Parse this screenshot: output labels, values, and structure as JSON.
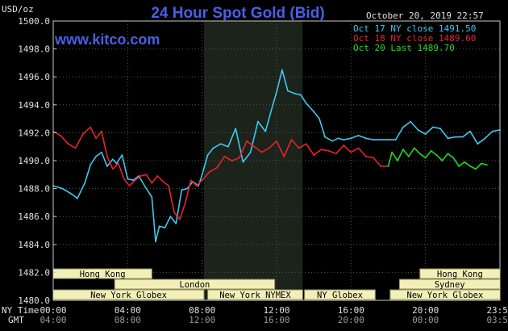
{
  "colors": {
    "background": "#000000",
    "plot_border": "#c8c8c8",
    "grid": "#555555",
    "shade": "#1b231b",
    "title": "#4a5fe8",
    "site": "#4a5fe8",
    "text": "#e0e0e0",
    "session_fill": "#f2efb8",
    "session_text": "#000000",
    "session_border": "#8a8a5a"
  },
  "chart_data": {
    "type": "line",
    "title": "24 Hour Spot Gold (Bid)",
    "site": "www.kitco.com",
    "unit_label": "USD/oz",
    "timestamp": "October 20, 2019 22:57",
    "ylim": [
      1480.0,
      1500.0
    ],
    "y_ticks": [
      1480.0,
      1482.0,
      1484.0,
      1486.0,
      1488.0,
      1490.0,
      1492.0,
      1494.0,
      1496.0,
      1498.0,
      1500.0
    ],
    "x_range_hours": [
      0,
      24
    ],
    "x_ticks": [
      {
        "hour": 0,
        "ny": "00:00",
        "gmt": "04:00"
      },
      {
        "hour": 4,
        "ny": "04:00",
        "gmt": "08:00"
      },
      {
        "hour": 8,
        "ny": "08:00",
        "gmt": "12:00"
      },
      {
        "hour": 12,
        "ny": "12:00",
        "gmt": "16:00"
      },
      {
        "hour": 16,
        "ny": "16:00",
        "gmt": "20:00"
      },
      {
        "hour": 20,
        "ny": "20:00",
        "gmt": "00:00"
      },
      {
        "hour": 24,
        "ny": "23:59",
        "gmt": "03:59"
      }
    ],
    "x_row_labels": {
      "ny": "NY Time",
      "gmt": "GMT"
    },
    "shaded_hours": [
      8.1,
      13.4
    ],
    "legend": [
      {
        "label": "Oct 17 NY close 1491.50",
        "color": "#3fc8f0"
      },
      {
        "label": "Oct 18 NY close 1489.60",
        "color": "#e8242a"
      },
      {
        "label": "Oct 20 Last 1489.70",
        "color": "#22d822"
      }
    ],
    "series": [
      {
        "name": "Oct 17 NY close 1491.50",
        "color": "#3fc8f0",
        "x": [
          0,
          0.5,
          1.0,
          1.3,
          1.7,
          2.0,
          2.3,
          2.6,
          2.9,
          3.2,
          3.4,
          3.7,
          4.0,
          4.3,
          4.6,
          5.0,
          5.3,
          5.5,
          5.7,
          6.0,
          6.3,
          6.6,
          6.9,
          7.2,
          7.5,
          7.8,
          8.0,
          8.3,
          8.6,
          9.0,
          9.4,
          9.8,
          10.2,
          10.6,
          11.0,
          11.4,
          11.8,
          12.0,
          12.3,
          12.6,
          13.0,
          13.3,
          13.6,
          14.0,
          14.3,
          14.6,
          15.0,
          15.3,
          15.6,
          16.0,
          16.4,
          16.8,
          17.2,
          17.6,
          18.0,
          18.4,
          18.8,
          19.2,
          19.6,
          20.0,
          20.4,
          20.8,
          21.2,
          21.6,
          22.0,
          22.4,
          22.8,
          23.2,
          23.6,
          24.0
        ],
        "y": [
          1488.2,
          1488.0,
          1487.6,
          1487.3,
          1488.4,
          1489.7,
          1490.3,
          1490.6,
          1489.6,
          1490.1,
          1489.8,
          1490.4,
          1488.7,
          1488.6,
          1488.9,
          1488.0,
          1487.4,
          1484.2,
          1485.3,
          1485.2,
          1486.0,
          1485.5,
          1487.9,
          1488.0,
          1488.5,
          1488.2,
          1489.0,
          1490.4,
          1490.9,
          1491.2,
          1491.0,
          1492.3,
          1489.9,
          1490.6,
          1492.8,
          1492.1,
          1494.0,
          1494.9,
          1496.5,
          1495.0,
          1494.8,
          1494.7,
          1494.1,
          1493.5,
          1493.0,
          1491.7,
          1491.4,
          1491.6,
          1491.5,
          1491.6,
          1491.8,
          1491.6,
          1491.5,
          1491.5,
          1491.5,
          1491.5,
          1492.4,
          1492.8,
          1492.2,
          1491.9,
          1492.4,
          1492.3,
          1491.6,
          1491.7,
          1491.7,
          1492.1,
          1491.2,
          1491.6,
          1492.1,
          1492.2
        ]
      },
      {
        "name": "Oct 18 NY close 1489.60",
        "color": "#e8242a",
        "x": [
          0,
          0.4,
          0.8,
          1.2,
          1.6,
          2.0,
          2.3,
          2.6,
          2.9,
          3.2,
          3.5,
          3.8,
          4.1,
          4.4,
          4.7,
          5.0,
          5.3,
          5.6,
          5.9,
          6.2,
          6.5,
          6.8,
          7.1,
          7.4,
          7.7,
          8.0,
          8.4,
          8.8,
          9.2,
          9.6,
          10.0,
          10.4,
          10.8,
          11.2,
          11.6,
          12.0,
          12.4,
          12.8,
          13.2,
          13.6,
          14.0,
          14.4,
          14.8,
          15.2,
          15.6,
          16.0,
          16.4,
          16.8,
          17.2,
          17.6,
          18.0
        ],
        "y": [
          1492.1,
          1491.8,
          1491.2,
          1490.9,
          1491.9,
          1492.4,
          1491.6,
          1492.1,
          1490.3,
          1489.4,
          1489.8,
          1488.7,
          1488.2,
          1488.6,
          1488.9,
          1489.0,
          1488.4,
          1488.9,
          1488.5,
          1488.2,
          1486.3,
          1485.8,
          1487.0,
          1488.6,
          1488.2,
          1488.6,
          1489.2,
          1489.5,
          1490.3,
          1490.0,
          1490.2,
          1491.4,
          1491.0,
          1490.6,
          1490.9,
          1491.4,
          1490.3,
          1491.5,
          1490.9,
          1491.2,
          1490.4,
          1490.8,
          1490.7,
          1490.5,
          1491.1,
          1490.6,
          1490.9,
          1490.3,
          1490.2,
          1489.6,
          1489.6
        ]
      },
      {
        "name": "Oct 20 Last 1489.70",
        "color": "#22d822",
        "x": [
          18.0,
          18.2,
          18.5,
          18.8,
          19.1,
          19.4,
          19.7,
          20.0,
          20.3,
          20.6,
          20.9,
          21.2,
          21.5,
          21.8,
          22.1,
          22.4,
          22.7,
          23.0,
          23.3
        ],
        "y": [
          1489.6,
          1490.6,
          1490.0,
          1490.8,
          1490.3,
          1490.9,
          1490.5,
          1490.2,
          1490.7,
          1490.4,
          1490.0,
          1490.5,
          1490.2,
          1489.6,
          1489.9,
          1489.6,
          1489.4,
          1489.8,
          1489.7
        ]
      }
    ],
    "sessions": [
      {
        "label": "Hong Kong",
        "row": 0,
        "start": 0,
        "end": 5.3
      },
      {
        "label": "Hong Kong",
        "row": 0,
        "start": 19.7,
        "end": 24
      },
      {
        "label": "London",
        "row": 1,
        "start": 3.3,
        "end": 11.9
      },
      {
        "label": "Sydney",
        "row": 1,
        "start": 18.6,
        "end": 24
      },
      {
        "label": "New York Globex",
        "row": 2,
        "start": 0,
        "end": 8.1
      },
      {
        "label": "New York NYMEX",
        "row": 2,
        "start": 8.3,
        "end": 13.4
      },
      {
        "label": "NY Globex",
        "row": 2,
        "start": 13.5,
        "end": 17.3
      },
      {
        "label": "New York Globex",
        "row": 2,
        "start": 18.1,
        "end": 24
      }
    ],
    "grid": true
  }
}
